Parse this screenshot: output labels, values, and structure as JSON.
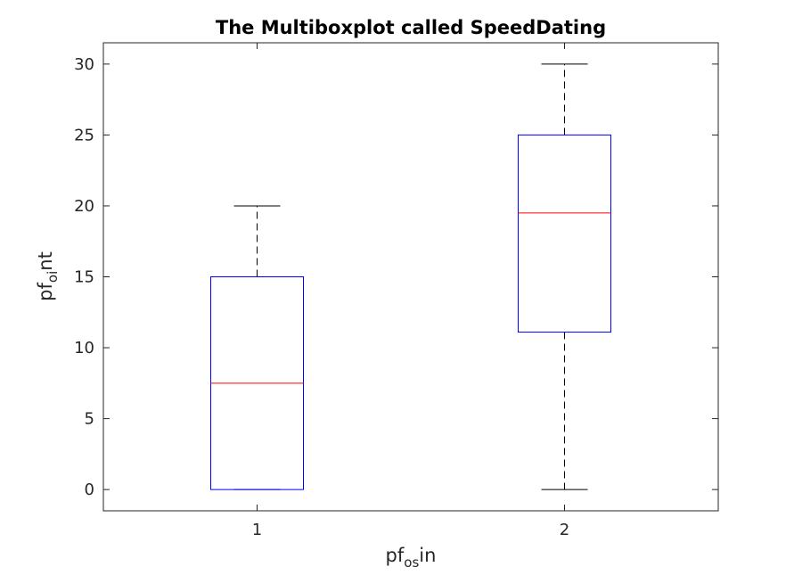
{
  "chart_data": {
    "type": "box",
    "title": "The Multiboxplot called SpeedDating",
    "xlabel": {
      "base": "pf",
      "sub": "os",
      "rest": "in"
    },
    "ylabel": {
      "base": "pf",
      "sub": "oi",
      "rest": "nt"
    },
    "ylim": [
      -1.5,
      31.5
    ],
    "yticks": [
      0,
      5,
      10,
      15,
      20,
      25,
      30
    ],
    "categories": [
      "1",
      "2"
    ],
    "boxes": [
      {
        "category": "1",
        "whisker_low": 0,
        "q1": 0,
        "median": 7.5,
        "q3": 15,
        "whisker_high": 20
      },
      {
        "category": "2",
        "whisker_low": 0,
        "q1": 11.1,
        "median": 19.5,
        "q3": 25,
        "whisker_high": 30
      }
    ],
    "colors": {
      "box": "#0000ff",
      "median": "#ff0000",
      "whisker": "#000000",
      "axes": "#262626"
    },
    "grid": false,
    "legend": false
  }
}
